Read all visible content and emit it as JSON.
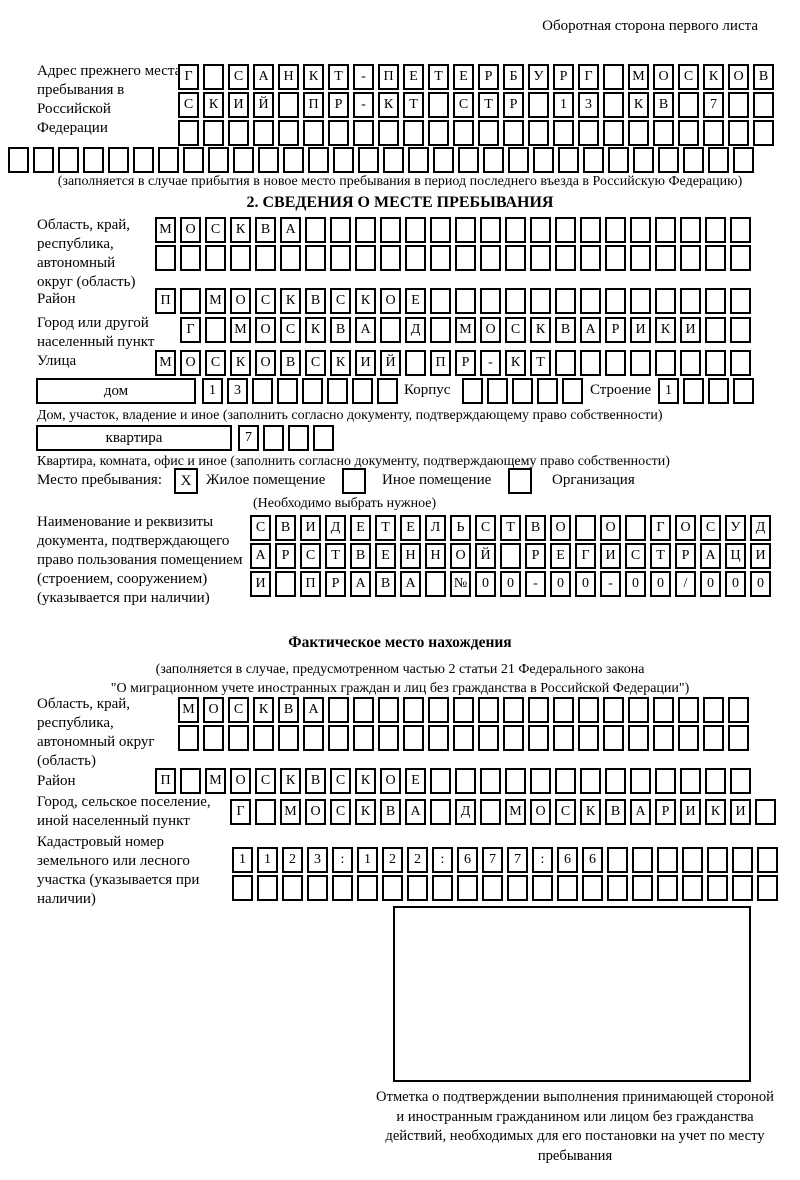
{
  "colors": {
    "ink": "#000000",
    "paper": "#ffffff"
  },
  "page": {
    "header_note": "Оборотная сторона первого листа"
  },
  "prev_address": {
    "label": "Адрес прежнего места пребывания в Российской Федерации",
    "rows": [
      {
        "cells": 24,
        "value": "Г САНКТ-ПЕТЕРБУРГ МОСКОВ"
      },
      {
        "cells": 24,
        "value": "СКИЙ ПР-КТ СТР 13 КВ 7"
      },
      {
        "cells": 24,
        "value": ""
      },
      {
        "cells": 30,
        "value": ""
      }
    ],
    "note": "(заполняется в случае прибытия в новое место пребывания в период последнего въезда в Российскую Федерацию)"
  },
  "section2": {
    "title": "2. СВЕДЕНИЯ О МЕСТЕ ПРЕБЫВАНИЯ",
    "region": {
      "label": "Область, край, республика, автономный округ (область)",
      "rows": [
        {
          "cells": 24,
          "value": "МОСКВА"
        },
        {
          "cells": 24,
          "value": ""
        }
      ]
    },
    "district": {
      "label": "Район",
      "row": {
        "cells": 24,
        "value": "П МОСКВСКОЕ"
      }
    },
    "city": {
      "label": "Город или другой населенный пункт",
      "row": {
        "cells": 23,
        "value": "Г МОСКВА Д МОСКВАРИКИ"
      }
    },
    "street": {
      "label": "Улица",
      "row": {
        "cells": 24,
        "value": "МОСКОВСКИЙ ПР-КТ"
      }
    },
    "house": {
      "type_label": "дом",
      "number": {
        "cells": 8,
        "value": "13"
      },
      "korpus_label": "Корпус",
      "korpus": {
        "cells": 5,
        "value": ""
      },
      "stroenie_label": "Строение",
      "stroenie": {
        "cells": 4,
        "value": "1"
      },
      "note": "Дом, участок, владение и иное (заполнить согласно документу, подтверждающему право собственности)"
    },
    "apartment": {
      "type_label": "квартира",
      "number": {
        "cells": 4,
        "value": "7"
      },
      "note": "Квартира, комната, офис и иное (заполнить согласно документу, подтверждающему право собственности)"
    },
    "stay_place": {
      "label": "Место пребывания:",
      "options": [
        {
          "label": "Жилое помещение",
          "checked": "X"
        },
        {
          "label": "Иное помещение",
          "checked": ""
        },
        {
          "label": "Организация",
          "checked": ""
        }
      ],
      "note": "(Необходимо выбрать нужное)"
    },
    "document": {
      "label": "Наименование и реквизиты документа, подтверждающего право пользования помещением (строением, сооружением) (указывается при наличии)",
      "rows": [
        {
          "cells": 21,
          "value": "СВИДЕТЕЛЬСТВО О ГОСУД"
        },
        {
          "cells": 21,
          "value": "АРСТВЕННОЙ РЕГИСТРАЦИ"
        },
        {
          "cells": 21,
          "value": "И ПРАВА №00-00-00/000"
        }
      ]
    }
  },
  "actual_location": {
    "title": "Фактическое место нахождения",
    "note_line1": "(заполняется в случае, предусмотренном частью 2 статьи 21 Федерального закона",
    "note_line2": "\"О миграционном учете иностранных граждан и лиц без гражданства в Российской Федерации\")",
    "region": {
      "label": "Область, край, республика, автономный округ (область)",
      "rows": [
        {
          "cells": 23,
          "value": "МОСКВА"
        },
        {
          "cells": 23,
          "value": ""
        }
      ]
    },
    "district": {
      "label": "Район",
      "row": {
        "cells": 24,
        "value": "П МОСКВСКОЕ"
      }
    },
    "city": {
      "label": "Город, сельское поселение, иной населенный пункт",
      "row": {
        "cells": 22,
        "value": "Г МОСКВА Д МОСКВАРИКИ"
      }
    },
    "cadastre": {
      "label": "Кадастровый номер земельного или лесного участка (указывается при наличии)",
      "rows": [
        {
          "cells": 22,
          "value": "1123:122:677:66"
        },
        {
          "cells": 22,
          "value": ""
        }
      ]
    }
  },
  "confirmation": {
    "caption": "Отметка о подтверждении выполнения принимающей стороной и иностранным гражданином или лицом без гражданства действий, необходимых для его постановки на учет по месту пребывания"
  }
}
